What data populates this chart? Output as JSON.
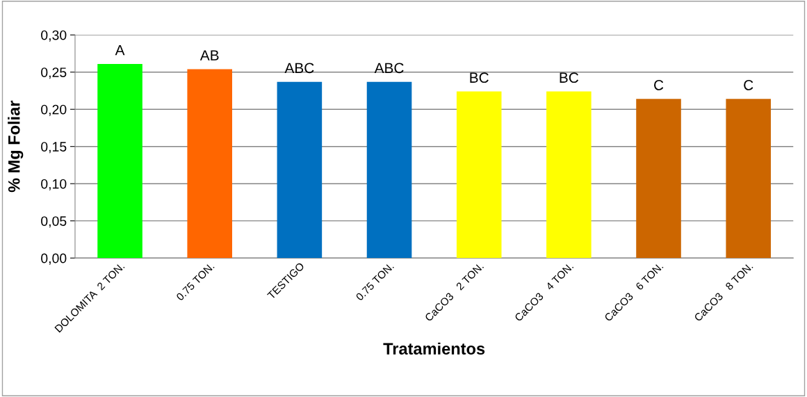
{
  "chart_data": {
    "type": "bar",
    "xlabel": "Tratamientos",
    "ylabel": "% Mg Foliar",
    "categories": [
      "DOLOMITA  2 TON.",
      "0.75 TON.",
      "TESTIGO",
      "0.75 TON.",
      "CaCO3   2 TON.",
      "CaCO3   4 TON.",
      "CaCO3   6 TON.",
      "CaCO3   8 TON."
    ],
    "values": [
      0.261,
      0.254,
      0.237,
      0.237,
      0.224,
      0.224,
      0.214,
      0.214
    ],
    "colors": [
      "#00ff00",
      "#ff6600",
      "#0070c0",
      "#0070c0",
      "#ffff00",
      "#ffff00",
      "#cc6600",
      "#cc6600"
    ],
    "value_labels": [
      "A",
      "AB",
      "ABC",
      "ABC",
      "BC",
      "BC",
      "C",
      "C"
    ],
    "ylim": [
      0,
      0.3
    ],
    "yticks": [
      {
        "value": 0,
        "label": "0,00"
      },
      {
        "value": 0.05,
        "label": "0,05"
      },
      {
        "value": 0.1,
        "label": "0,10"
      },
      {
        "value": 0.15,
        "label": "0,15"
      },
      {
        "value": 0.2,
        "label": "0,20"
      },
      {
        "value": 0.25,
        "label": "0,25"
      },
      {
        "value": 0.3,
        "label": "0,30"
      }
    ],
    "grid": "y",
    "legend": false
  }
}
